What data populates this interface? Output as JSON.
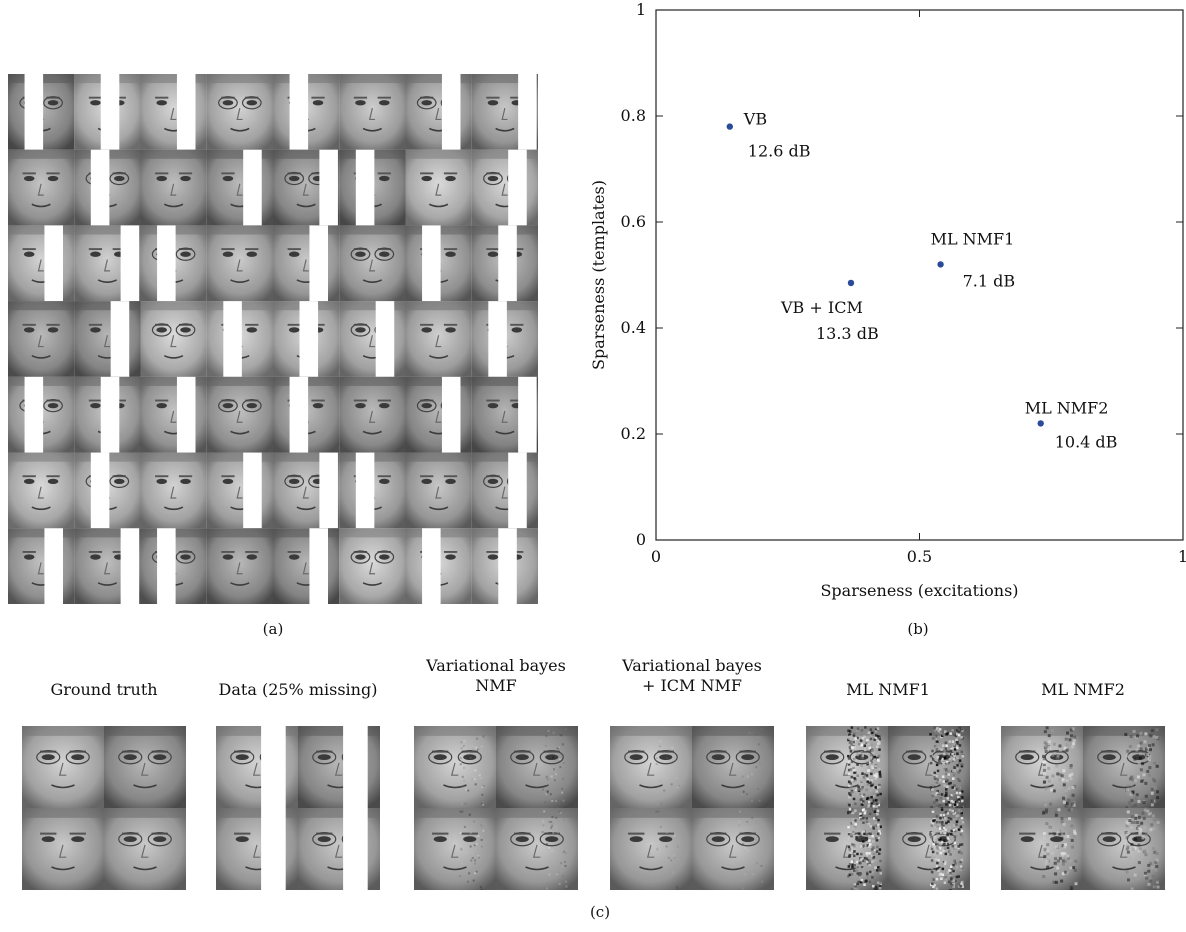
{
  "panel_labels": {
    "a": "(a)",
    "b": "(b)",
    "c": "(c)"
  },
  "panel_a": {
    "rows": 7,
    "cols": 8,
    "description_visible": false
  },
  "chart_data": {
    "type": "scatter",
    "title": "",
    "xlabel": "Sparseness (excitations)",
    "ylabel": "Sparseness (templates)",
    "xlim": [
      0,
      1
    ],
    "ylim": [
      0,
      1
    ],
    "xticks": [
      "0",
      "0.5",
      "1"
    ],
    "yticks": [
      "0",
      "0.2",
      "0.4",
      "0.6",
      "0.8",
      "1"
    ],
    "grid": false,
    "point_color": "#2a4a9a",
    "points": [
      {
        "label": "VB",
        "sublabel": "12.6 dB",
        "x": 0.14,
        "y": 0.78
      },
      {
        "label": "VB + ICM",
        "sublabel": "13.3 dB",
        "x": 0.37,
        "y": 0.485
      },
      {
        "label": "ML NMF1",
        "sublabel": "7.1 dB",
        "x": 0.54,
        "y": 0.52
      },
      {
        "label": "ML NMF2",
        "sublabel": "10.4 dB",
        "x": 0.73,
        "y": 0.22
      }
    ]
  },
  "panel_c": {
    "items": [
      {
        "title_line1": "Ground truth",
        "title_line2": "",
        "mode": "truth"
      },
      {
        "title_line1": "Data (25% missing)",
        "title_line2": "",
        "mode": "missing"
      },
      {
        "title_line1": "Variational bayes",
        "title_line2": "NMF",
        "mode": "vb"
      },
      {
        "title_line1": "Variational bayes",
        "title_line2": "+ ICM NMF",
        "mode": "icm"
      },
      {
        "title_line1": "ML NMF1",
        "title_line2": "",
        "mode": "ml1"
      },
      {
        "title_line1": "ML NMF2",
        "title_line2": "",
        "mode": "ml2"
      }
    ]
  }
}
